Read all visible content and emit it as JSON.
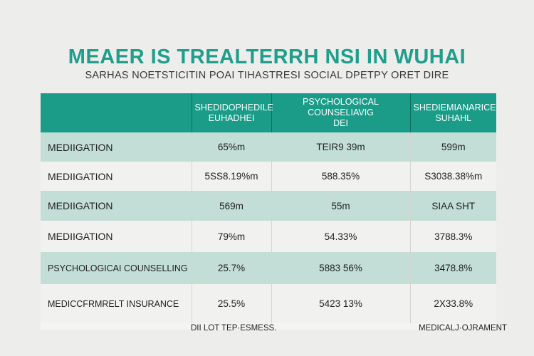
{
  "chart_data": {
    "type": "table",
    "title": "MEAER IS TREALTERRH NSI IN WUHAI",
    "subtitle": "SARHAS NOETSTICITIN POAI TIHASTRESI SOCIAL DPETPY ORET DIRE",
    "columns": [
      {
        "line1": "",
        "line2": ""
      },
      {
        "line1": "SHEDIDOPHEDILE",
        "line2": "EUHADHEI"
      },
      {
        "line1": "PSYCHOLOGICAL COUNSELIAVIG",
        "line2": "DEI"
      },
      {
        "line1": "SHEDIEMIANARICE",
        "line2": "SUHAHL"
      }
    ],
    "rows": [
      {
        "label": "MEDIIGATION",
        "cells": [
          "65%m",
          "TEIR9 39m",
          "599m"
        ]
      },
      {
        "label": "MEDIIGATION",
        "cells": [
          "5SS8.19%m",
          "588.35%",
          "S3038.38%m"
        ]
      },
      {
        "label": "MEDIIGATION",
        "cells": [
          "569m",
          "55m",
          "SIAA SHT"
        ]
      },
      {
        "label": "MEDIIGATION",
        "cells": [
          "79%m",
          "54.33%",
          "3788.3%"
        ]
      },
      {
        "label": "PSYCHOLOGICAI COUNSELLING",
        "cells": [
          "25.7%",
          "5883 56%",
          "3478.8%"
        ]
      },
      {
        "label": "MEDICCFRMRELT INSURANCE",
        "cells": [
          "25.5%",
          "5423 13%",
          "2X33.8%"
        ]
      }
    ],
    "footer_left": "DII LOT TEP·ESMESS.",
    "footer_right": "MEDICALJ·OJRAMENT"
  }
}
